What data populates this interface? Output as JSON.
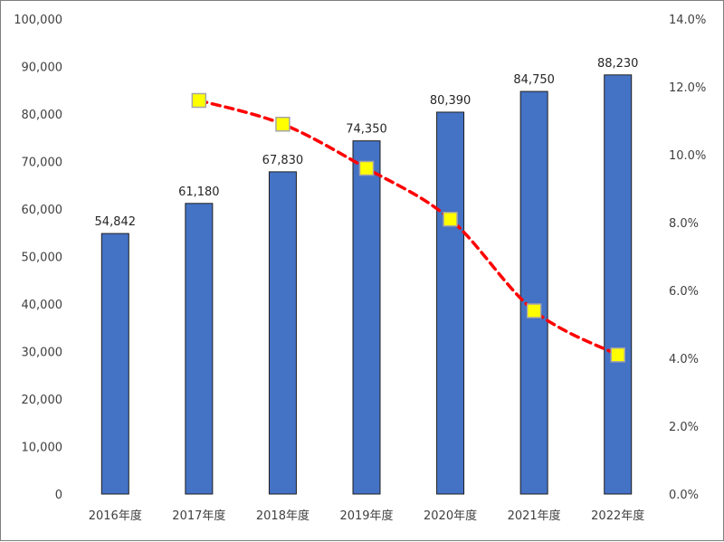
{
  "chart_data": {
    "type": "bar",
    "categories": [
      "2016年度",
      "2017年度",
      "2018年度",
      "2019年度",
      "2020年度",
      "2021年度",
      "2022年度"
    ],
    "series": [
      {
        "type": "bar",
        "axis": "left",
        "values": [
          54842,
          61180,
          67830,
          74350,
          80390,
          84750,
          88230
        ],
        "data_labels": [
          "54,842",
          "61,180",
          "67,830",
          "74,350",
          "80,390",
          "84,750",
          "88,230"
        ],
        "color": "#4472c4"
      },
      {
        "type": "line",
        "axis": "right",
        "style": "dashed",
        "marker": "square",
        "values": [
          null,
          11.6,
          10.9,
          9.6,
          8.1,
          5.4,
          4.1
        ],
        "color": "#ff0000",
        "marker_color": "#ffff00"
      }
    ],
    "ylim": [
      0,
      100000
    ],
    "y_ticks": [
      "0",
      "10,000",
      "20,000",
      "30,000",
      "40,000",
      "50,000",
      "60,000",
      "70,000",
      "80,000",
      "90,000",
      "100,000"
    ],
    "y2lim": [
      0,
      14
    ],
    "y2_ticks": [
      "0.0%",
      "2.0%",
      "4.0%",
      "6.0%",
      "8.0%",
      "10.0%",
      "12.0%",
      "14.0%"
    ],
    "grid": false,
    "legend": "none"
  }
}
